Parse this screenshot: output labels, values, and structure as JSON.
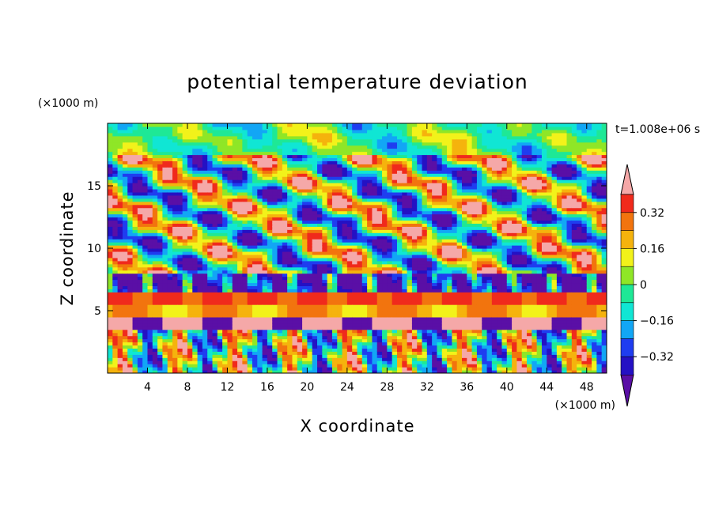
{
  "chart_data": {
    "type": "heatmap",
    "title": "potential temperature deviation",
    "xlabel": "X coordinate",
    "ylabel": "Z coordinate",
    "x_unit": "(×1000 m)",
    "y_unit": "(×1000 m)",
    "time_label": "t=1.008e+06 s",
    "xlim": [
      0,
      50
    ],
    "ylim": [
      0,
      20
    ],
    "x_ticks": [
      4,
      8,
      12,
      16,
      20,
      24,
      28,
      32,
      36,
      40,
      44,
      48
    ],
    "y_ticks": [
      5,
      10,
      15
    ],
    "x_tick_labels": [
      "4",
      "8",
      "12",
      "16",
      "20",
      "24",
      "28",
      "32",
      "36",
      "40",
      "44",
      "48"
    ],
    "y_tick_labels": [
      "5",
      "10",
      "15"
    ],
    "colorbar": {
      "levels": [
        -0.48,
        -0.4,
        -0.32,
        -0.24,
        -0.16,
        -0.08,
        0,
        0.08,
        0.16,
        0.24,
        0.32,
        0.4
      ],
      "tick_values": [
        0.32,
        0.16,
        0,
        -0.16,
        -0.32
      ],
      "tick_labels": [
        "0.32",
        "0.16",
        "0",
        "−0.16",
        "−0.32"
      ],
      "colors": [
        "#5a0fa6",
        "#2411c4",
        "#1f3df0",
        "#12a6f5",
        "#10e6d4",
        "#1ee896",
        "#8fe627",
        "#f2f21a",
        "#f5b30d",
        "#f2740e",
        "#f02a1c",
        "#f5a8a8"
      ]
    }
  }
}
